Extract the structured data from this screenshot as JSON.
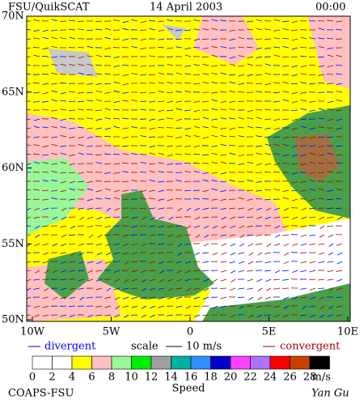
{
  "header": {
    "left": "FSU/QuikSCAT",
    "date": "14 April 2003",
    "time": "00:00"
  },
  "map": {
    "lat_labels": [
      "70N",
      "65N",
      "60N",
      "55N",
      "50N"
    ],
    "lon_labels": [
      "10W",
      "5W",
      "0",
      "5E",
      "10E"
    ]
  },
  "legend": {
    "divergent": "divergent",
    "scale": "scale",
    "scale_value": "10 m/s",
    "convergent": "convergent"
  },
  "colorbar": {
    "labels": [
      0,
      2,
      4,
      6,
      8,
      10,
      12,
      14,
      16,
      18,
      20,
      22,
      24,
      26,
      28
    ],
    "colors": [
      "#ffffff",
      "#ffffff",
      "#ffff00",
      "#ffc0c0",
      "#98f898",
      "#00ee00",
      "#a0a0a0",
      "#00b0a0",
      "#3090ff",
      "#0000c8",
      "#ff40ff",
      "#b070ff",
      "#ff0000",
      "#c84000",
      "#000000"
    ],
    "unit": "m/s",
    "title": "Speed"
  },
  "footer": {
    "left": "COAPS-FSU",
    "right": "Yan Gu"
  }
}
